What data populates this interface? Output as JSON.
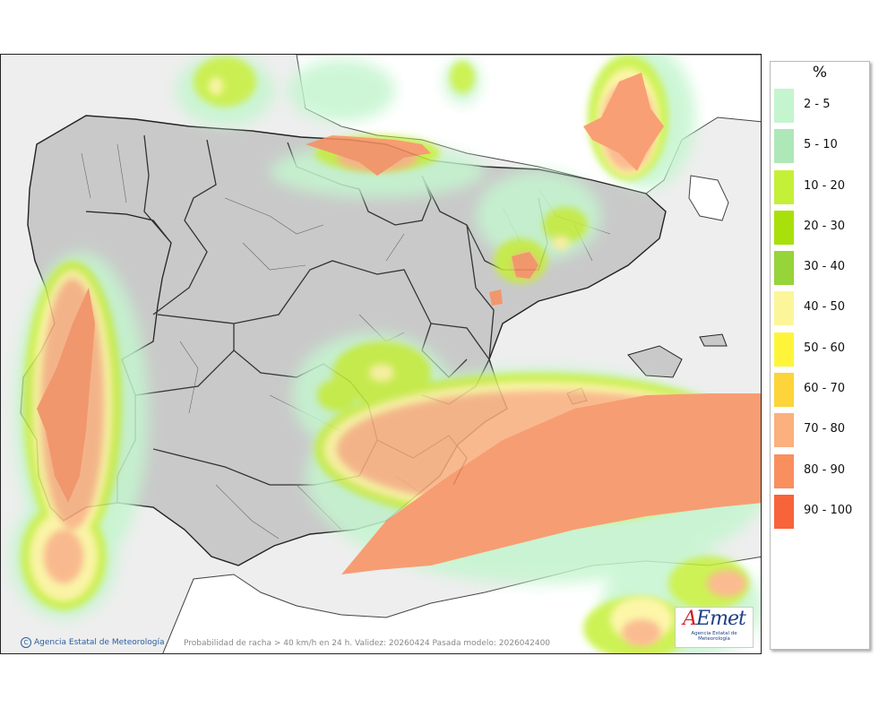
{
  "legend": {
    "title": "%",
    "entries": [
      {
        "label": "2 - 5",
        "color": "#c4f5cf"
      },
      {
        "label": "5 - 10",
        "color": "#aee8b9"
      },
      {
        "label": "10 - 20",
        "color": "#c5f038"
      },
      {
        "label": "20 - 30",
        "color": "#a8e00c"
      },
      {
        "label": "30 - 40",
        "color": "#96d43a"
      },
      {
        "label": "40 - 50",
        "color": "#fdf59a"
      },
      {
        "label": "50 - 60",
        "color": "#fef53a"
      },
      {
        "label": "60 - 70",
        "color": "#fdd43a"
      },
      {
        "label": "70 - 80",
        "color": "#fbb07e"
      },
      {
        "label": "80 - 90",
        "color": "#f98f5e"
      },
      {
        "label": "90 - 100",
        "color": "#f8633a"
      }
    ]
  },
  "footer": {
    "credit": "Agencia Estatal de Meteorología",
    "caption": "Probabilidad de racha > 40 km/h en 24 h. Validez: 20260424 Pasada modelo: 2026042400"
  },
  "logo": {
    "word": "AEmet",
    "subtitle": "Agencia Estatal de Meteorología"
  }
}
